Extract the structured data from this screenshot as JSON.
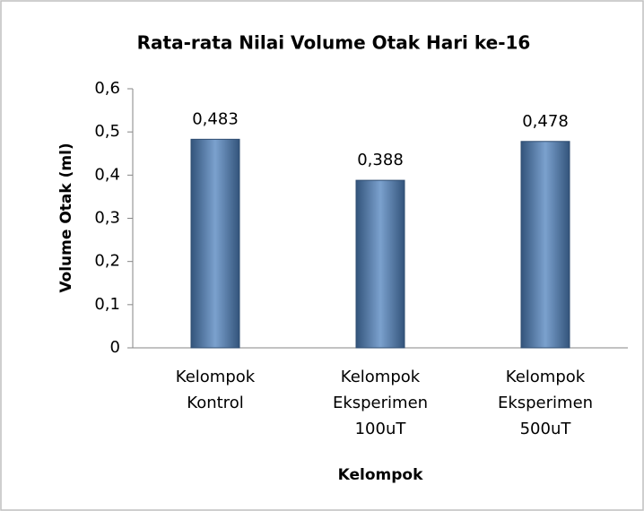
{
  "chart_data": {
    "type": "bar",
    "title": "Rata-rata Nilai Volume Otak Hari ke-16",
    "x_label": "Kelompok",
    "y_label": "Volume Otak (ml)",
    "categories": [
      "Kelompok\nKontrol",
      "Kelompok\nEksperimen\n100uT",
      "Kelompok\nEksperimen\n500uT"
    ],
    "values": [
      0.483,
      0.388,
      0.478
    ],
    "value_labels": [
      "0,483",
      "0,388",
      "0,478"
    ],
    "color": "#4f81bd",
    "ylim": [
      0,
      0.6
    ],
    "yticks": [
      0,
      {
        "value": 0.1,
        "label": "0,1"
      },
      {
        "value": 0.2,
        "label": "0,2"
      },
      {
        "value": 0.3,
        "label": "0,3"
      },
      {
        "value": 0.4,
        "label": "0,4"
      },
      {
        "value": 0.5,
        "label": "0,5"
      },
      {
        "value": 0.6,
        "label": "0,6"
      }
    ],
    "grid": false
  }
}
